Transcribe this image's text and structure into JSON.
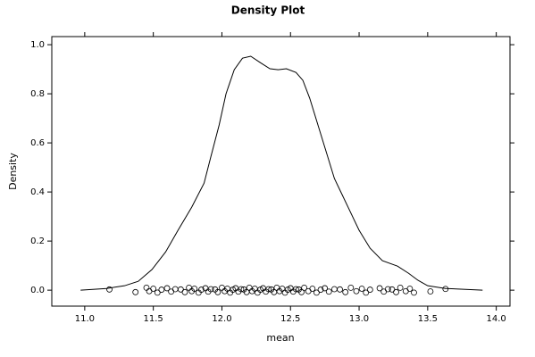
{
  "chart_data": {
    "type": "density",
    "title": "Density Plot",
    "x_label": "mean",
    "y_label": "Density",
    "xlim": [
      10.76,
      14.1
    ],
    "ylim": [
      -0.065,
      1.033
    ],
    "xticks": [
      {
        "value": 11,
        "label": "11.0"
      },
      {
        "value": 11.5,
        "label": "11.5"
      },
      {
        "value": 12,
        "label": "12.0"
      },
      {
        "value": 12.5,
        "label": "12.5"
      },
      {
        "value": 13,
        "label": "13.0"
      },
      {
        "value": 13.5,
        "label": "13.5"
      },
      {
        "value": 14,
        "label": "14.0"
      }
    ],
    "yticks": [
      {
        "value": 0,
        "label": "0.0"
      },
      {
        "value": 0.2,
        "label": "0.2"
      },
      {
        "value": 0.4,
        "label": "0.4"
      },
      {
        "value": 0.6,
        "label": "0.6"
      },
      {
        "value": 0.8,
        "label": "0.8"
      },
      {
        "value": 1,
        "label": "1.0"
      }
    ],
    "color": "#000000",
    "x": [
      10.97,
      11.16,
      11.29,
      11.39,
      11.49,
      11.59,
      11.68,
      11.78,
      11.87,
      11.92,
      11.98,
      12.03,
      12.09,
      12.15,
      12.21,
      12.28,
      12.35,
      12.41,
      12.47,
      12.54,
      12.59,
      12.64,
      12.71,
      12.76,
      12.82,
      12.92,
      13.0,
      13.08,
      13.17,
      13.28,
      13.36,
      13.43,
      13.5,
      13.63,
      13.9
    ],
    "values": [
      0,
      0.007,
      0.018,
      0.036,
      0.084,
      0.156,
      0.244,
      0.338,
      0.436,
      0.545,
      0.673,
      0.8,
      0.898,
      0.945,
      0.953,
      0.927,
      0.902,
      0.898,
      0.902,
      0.887,
      0.855,
      0.782,
      0.655,
      0.564,
      0.455,
      0.338,
      0.244,
      0.171,
      0.12,
      0.098,
      0.069,
      0.04,
      0.018,
      0.007,
      0
    ],
    "points": {
      "x": [
        11.18,
        11.37,
        11.45,
        11.47,
        11.5,
        11.53,
        11.56,
        11.6,
        11.63,
        11.66,
        11.7,
        11.73,
        11.76,
        11.78,
        11.8,
        11.83,
        11.85,
        11.88,
        11.9,
        11.92,
        11.95,
        11.97,
        12.0,
        12.02,
        12.04,
        12.06,
        12.08,
        12.1,
        12.12,
        12.14,
        12.16,
        12.18,
        12.2,
        12.22,
        12.24,
        12.26,
        12.28,
        12.3,
        12.32,
        12.34,
        12.36,
        12.38,
        12.4,
        12.42,
        12.44,
        12.46,
        12.48,
        12.5,
        12.52,
        12.54,
        12.56,
        12.58,
        12.6,
        12.63,
        12.66,
        12.69,
        12.72,
        12.75,
        12.78,
        12.82,
        12.86,
        12.9,
        12.94,
        12.98,
        13.02,
        13.05,
        13.08,
        13.15,
        13.18,
        13.21,
        13.24,
        13.27,
        13.3,
        13.34,
        13.37,
        13.4,
        13.52,
        13.63
      ],
      "y": [
        0.003,
        -0.008,
        0.01,
        -0.004,
        0.006,
        -0.01,
        0.002,
        0.008,
        -0.006,
        0.004,
        0.003,
        -0.008,
        0.01,
        -0.004,
        0.006,
        -0.01,
        0.002,
        0.008,
        -0.006,
        0.004,
        0.003,
        -0.008,
        0.01,
        -0.004,
        0.006,
        -0.01,
        0.002,
        0.008,
        -0.006,
        0.004,
        0.003,
        -0.008,
        0.01,
        -0.004,
        0.006,
        -0.01,
        0.002,
        0.008,
        -0.006,
        0.004,
        0.003,
        -0.008,
        0.01,
        -0.004,
        0.006,
        -0.01,
        0.002,
        0.008,
        -0.006,
        0.004,
        0.003,
        -0.008,
        0.01,
        -0.004,
        0.006,
        -0.01,
        0.002,
        0.008,
        -0.006,
        0.004,
        0.003,
        -0.008,
        0.01,
        -0.004,
        0.006,
        -0.01,
        0.002,
        0.008,
        -0.006,
        0.004,
        0.003,
        -0.008,
        0.01,
        -0.004,
        0.006,
        -0.01,
        -0.005,
        0.005
      ]
    }
  }
}
